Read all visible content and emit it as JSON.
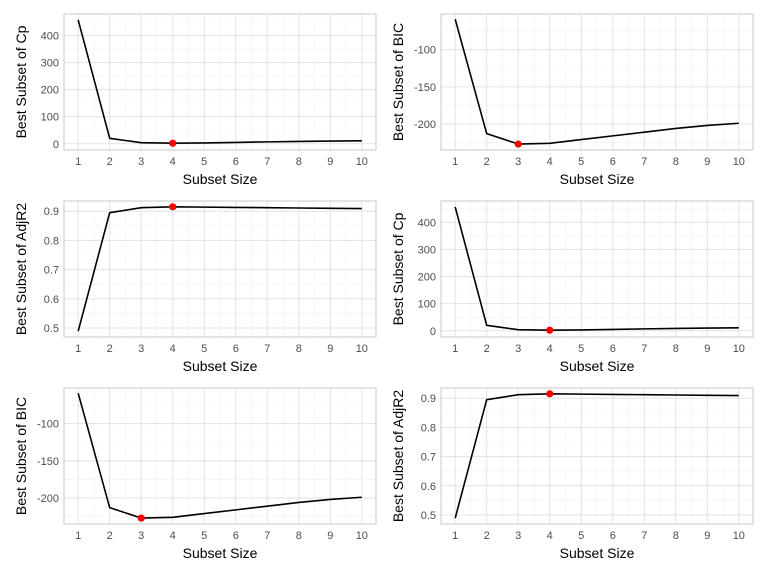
{
  "colors": {
    "line": "#000000",
    "highlight": "#ff0000"
  },
  "chart_data": [
    {
      "type": "line",
      "xlabel": "Subset Size",
      "ylabel": "Best Subset of Cp",
      "x": [
        1,
        2,
        3,
        4,
        5,
        6,
        7,
        8,
        9,
        10
      ],
      "y": [
        457,
        20,
        4,
        2,
        3,
        5,
        7,
        8.5,
        10,
        11
      ],
      "highlight": {
        "x": 4,
        "y": 2
      },
      "xlim": [
        0.55,
        10.45
      ],
      "ylim": [
        -23,
        479
      ],
      "xticks": [
        1,
        2,
        3,
        4,
        5,
        6,
        7,
        8,
        9,
        10
      ],
      "yticks": [
        0,
        100,
        200,
        300,
        400
      ],
      "grid": true
    },
    {
      "type": "line",
      "xlabel": "Subset Size",
      "ylabel": "Best Subset of BIC",
      "x": [
        1,
        2,
        3,
        4,
        5,
        6,
        7,
        8,
        9,
        10
      ],
      "y": [
        -59,
        -213,
        -227,
        -226,
        -221,
        -216,
        -211,
        -206,
        -202,
        -199
      ],
      "highlight": {
        "x": 3,
        "y": -227
      },
      "xlim": [
        0.55,
        10.45
      ],
      "ylim": [
        -235,
        -52
      ],
      "xticks": [
        1,
        2,
        3,
        4,
        5,
        6,
        7,
        8,
        9,
        10
      ],
      "yticks": [
        -100,
        -150,
        -200
      ],
      "grid": true
    },
    {
      "type": "line",
      "xlabel": "Subset Size",
      "ylabel": "Best Subset of AdjR2",
      "x": [
        1,
        2,
        3,
        4,
        5,
        6,
        7,
        8,
        9,
        10
      ],
      "y": [
        0.489,
        0.895,
        0.912,
        0.915,
        0.914,
        0.913,
        0.912,
        0.911,
        0.91,
        0.909
      ],
      "highlight": {
        "x": 4,
        "y": 0.915
      },
      "xlim": [
        0.55,
        10.45
      ],
      "ylim": [
        0.469,
        0.935
      ],
      "xticks": [
        1,
        2,
        3,
        4,
        5,
        6,
        7,
        8,
        9,
        10
      ],
      "yticks": [
        0.5,
        0.6,
        0.7,
        0.8,
        0.9
      ],
      "grid": true
    },
    {
      "type": "line",
      "xlabel": "Subset Size",
      "ylabel": "Best Subset of Cp",
      "x": [
        1,
        2,
        3,
        4,
        5,
        6,
        7,
        8,
        9,
        10
      ],
      "y": [
        457,
        20,
        4,
        2,
        3,
        5,
        7,
        8.5,
        10,
        11
      ],
      "highlight": {
        "x": 4,
        "y": 2
      },
      "xlim": [
        0.55,
        10.45
      ],
      "ylim": [
        -23,
        479
      ],
      "xticks": [
        1,
        2,
        3,
        4,
        5,
        6,
        7,
        8,
        9,
        10
      ],
      "yticks": [
        0,
        100,
        200,
        300,
        400
      ],
      "grid": true
    },
    {
      "type": "line",
      "xlabel": "Subset Size",
      "ylabel": "Best Subset of BIC",
      "x": [
        1,
        2,
        3,
        4,
        5,
        6,
        7,
        8,
        9,
        10
      ],
      "y": [
        -59,
        -213,
        -227,
        -226,
        -221,
        -216,
        -211,
        -206,
        -202,
        -199
      ],
      "highlight": {
        "x": 3,
        "y": -227
      },
      "xlim": [
        0.55,
        10.45
      ],
      "ylim": [
        -235,
        -52
      ],
      "xticks": [
        1,
        2,
        3,
        4,
        5,
        6,
        7,
        8,
        9,
        10
      ],
      "yticks": [
        -100,
        -150,
        -200
      ],
      "grid": true
    },
    {
      "type": "line",
      "xlabel": "Subset Size",
      "ylabel": "Best Subset of AdjR2",
      "x": [
        1,
        2,
        3,
        4,
        5,
        6,
        7,
        8,
        9,
        10
      ],
      "y": [
        0.489,
        0.895,
        0.912,
        0.915,
        0.914,
        0.913,
        0.912,
        0.911,
        0.91,
        0.909
      ],
      "highlight": {
        "x": 4,
        "y": 0.915
      },
      "xlim": [
        0.55,
        10.45
      ],
      "ylim": [
        0.469,
        0.935
      ],
      "xticks": [
        1,
        2,
        3,
        4,
        5,
        6,
        7,
        8,
        9,
        10
      ],
      "yticks": [
        0.5,
        0.6,
        0.7,
        0.8,
        0.9
      ],
      "grid": true
    }
  ]
}
